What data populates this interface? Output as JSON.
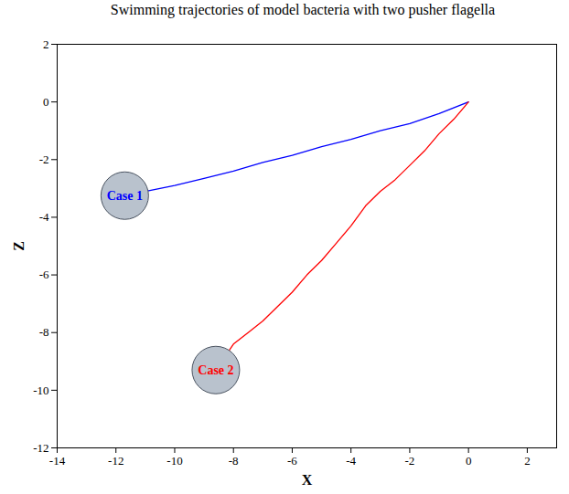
{
  "chart_data": {
    "type": "line",
    "title": "Swimming trajectories of model bacteria with two pusher flagella",
    "x_label": "X",
    "y_label": "Z",
    "xlim": [
      -14,
      3
    ],
    "ylim": [
      -12,
      2
    ],
    "xticks": [
      -14,
      -12,
      -10,
      -8,
      -6,
      -4,
      -2,
      0,
      2
    ],
    "yticks": [
      -12,
      -10,
      -8,
      -6,
      -4,
      -2,
      0,
      2
    ],
    "series": [
      {
        "name": "Case 1",
        "color": "#0000ff",
        "x": [
          0,
          -1,
          -2,
          -3,
          -4,
          -5,
          -6,
          -7,
          -8,
          -9,
          -10,
          -11,
          -11.7
        ],
        "values": [
          0,
          -0.4,
          -0.75,
          -1.0,
          -1.3,
          -1.55,
          -1.85,
          -2.1,
          -2.4,
          -2.65,
          -2.9,
          -3.1,
          -3.25
        ]
      },
      {
        "name": "Case 2",
        "color": "#ff0000",
        "x": [
          0,
          -0.5,
          -1,
          -1.5,
          -2,
          -2.5,
          -3,
          -3.5,
          -4,
          -4.5,
          -5,
          -5.5,
          -6,
          -6.5,
          -7,
          -7.5,
          -8,
          -8.6
        ],
        "values": [
          0,
          -0.6,
          -1.1,
          -1.7,
          -2.2,
          -2.7,
          -3.1,
          -3.6,
          -4.3,
          -4.9,
          -5.5,
          -6.0,
          -6.6,
          -7.1,
          -7.6,
          -8.0,
          -8.4,
          -9.3
        ]
      }
    ]
  }
}
